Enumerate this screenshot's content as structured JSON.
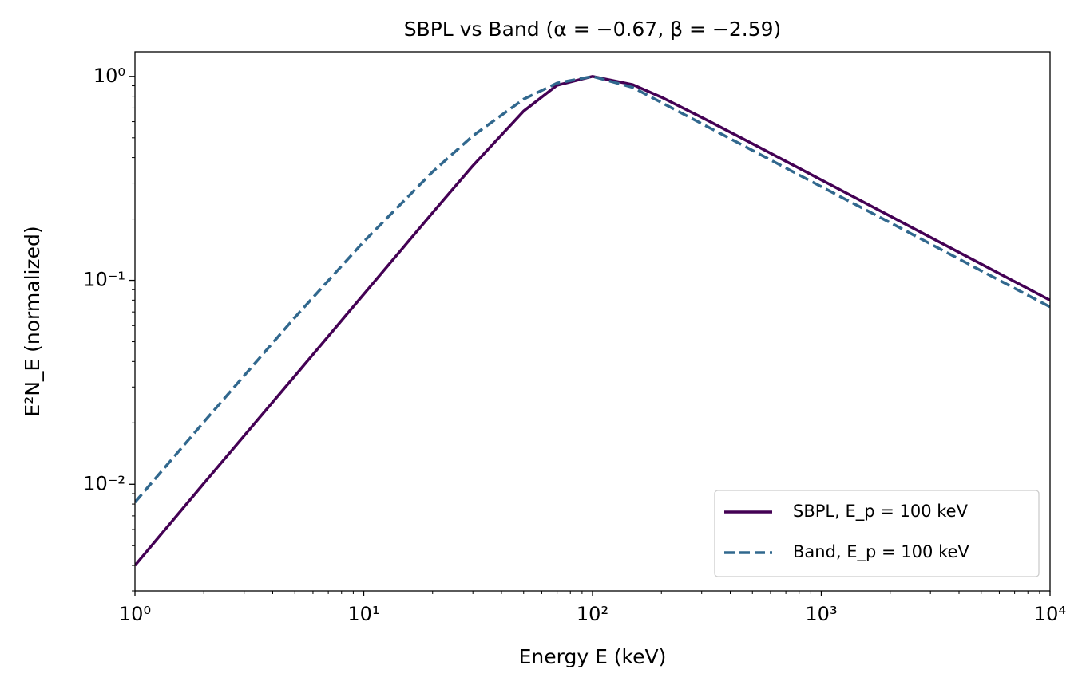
{
  "chart_data": {
    "type": "line",
    "title": "SBPL vs Band (α = −0.67, β = −2.59)",
    "xlabel": "Energy E (keV)",
    "ylabel": "E²N_E (normalized)",
    "xscale": "log",
    "yscale": "log",
    "grid": false,
    "legend": "lower right",
    "x": [
      1,
      2,
      5,
      10,
      20,
      30,
      50,
      70,
      100,
      150,
      200,
      300,
      500,
      1000,
      2000,
      5000,
      10000
    ],
    "series": [
      {
        "name": "SBPL, E_p = 100 keV",
        "color": "#440154",
        "linestyle": "solid",
        "values": [
          0.004,
          0.0101,
          0.034,
          0.0855,
          0.2147,
          0.365,
          0.676,
          0.905,
          1.0,
          0.911,
          0.791,
          0.63,
          0.468,
          0.311,
          0.2066,
          0.1203,
          0.0799
        ]
      },
      {
        "name": "Band, E_p = 100 keV",
        "color": "#31688e",
        "linestyle": "dashed",
        "values": [
          0.00816,
          0.0202,
          0.0658,
          0.1548,
          0.3408,
          0.5115,
          0.7735,
          0.9273,
          1.0,
          0.883,
          0.745,
          0.587,
          0.434,
          0.288,
          0.192,
          0.1115,
          0.0741
        ]
      }
    ],
    "xlim": [
      1,
      10000
    ],
    "ylim": [
      0.003,
      1.32
    ],
    "xticks": [
      {
        "value": 1,
        "label": "10⁰"
      },
      {
        "value": 10,
        "label": "10¹"
      },
      {
        "value": 100,
        "label": "10²"
      },
      {
        "value": 1000,
        "label": "10³"
      },
      {
        "value": 10000,
        "label": "10⁴"
      }
    ],
    "yticks": [
      {
        "value": 0.01,
        "label": "10⁻²"
      },
      {
        "value": 0.1,
        "label": "10⁻¹"
      },
      {
        "value": 1,
        "label": "10⁰"
      }
    ],
    "xminorticks": [
      2,
      3,
      4,
      5,
      6,
      7,
      8,
      9,
      20,
      30,
      40,
      50,
      60,
      70,
      80,
      90,
      200,
      300,
      400,
      500,
      600,
      700,
      800,
      900,
      2000,
      3000,
      4000,
      5000,
      6000,
      7000,
      8000,
      9000
    ],
    "yminorticks": [
      0.003,
      0.004,
      0.005,
      0.006,
      0.007,
      0.008,
      0.009,
      0.02,
      0.03,
      0.04,
      0.05,
      0.06,
      0.07,
      0.08,
      0.09,
      0.2,
      0.3,
      0.4,
      0.5,
      0.6,
      0.7,
      0.8,
      0.9
    ]
  }
}
